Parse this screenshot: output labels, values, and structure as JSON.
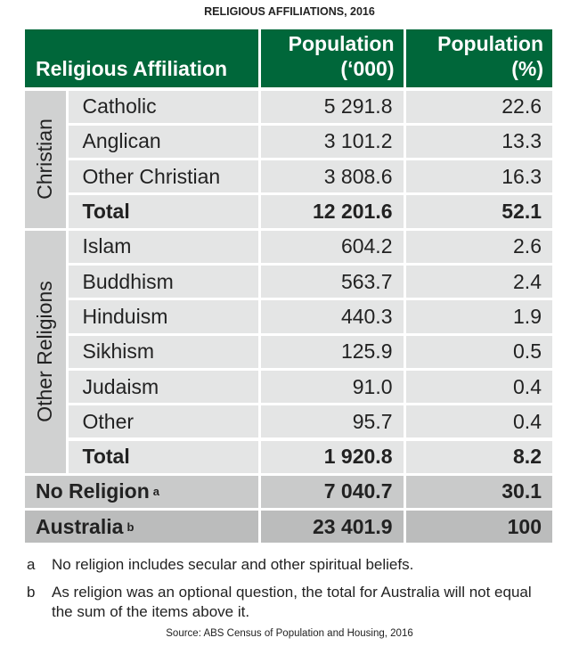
{
  "title": "RELIGIOUS AFFILIATIONS, 2016",
  "table": {
    "header": [
      "Religious Affiliation",
      "Population (‘000)",
      "Population (%)"
    ],
    "groups": [
      {
        "label": "Christian",
        "rows": [
          [
            "Catholic",
            "5 291.8",
            "22.6"
          ],
          [
            "Anglican",
            "3 101.2",
            "13.3"
          ],
          [
            "Other Christian",
            "3 808.6",
            "16.3"
          ],
          [
            "Total",
            "12 201.6",
            "52.1"
          ]
        ]
      },
      {
        "label": "Other Religions",
        "rows": [
          [
            "Islam",
            "604.2",
            "2.6"
          ],
          [
            "Buddhism",
            "563.7",
            "2.4"
          ],
          [
            "Hinduism",
            "440.3",
            "1.9"
          ],
          [
            "Sikhism",
            "125.9",
            "0.5"
          ],
          [
            "Judaism",
            "91.0",
            "0.4"
          ],
          [
            "Other",
            "95.7",
            "0.4"
          ],
          [
            "Total",
            "1 920.8",
            "8.2"
          ]
        ]
      }
    ],
    "summary_rows": [
      {
        "label": "No Religion",
        "note": "a",
        "values": [
          "7 040.7",
          "30.1"
        ]
      },
      {
        "label": "Australia",
        "note": "b",
        "values": [
          "23 401.9",
          "100"
        ]
      }
    ]
  },
  "footnotes": [
    {
      "marker": "a",
      "text": "No religion includes secular and other spiritual beliefs."
    },
    {
      "marker": "b",
      "text": "As religion was an optional question, the total for Australia will not equal the sum of the items above it."
    }
  ],
  "source": "Source: ABS Census of Population and Housing, 2016"
}
